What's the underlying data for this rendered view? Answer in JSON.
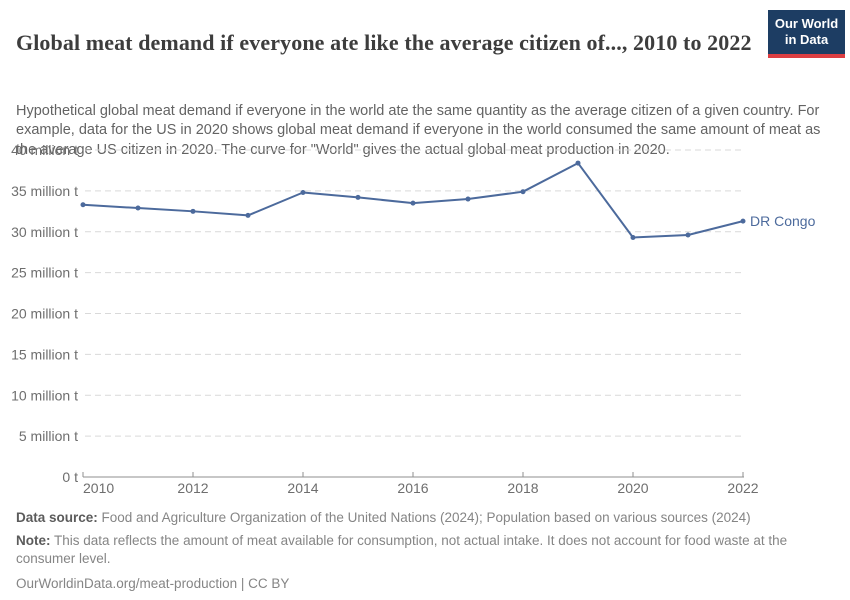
{
  "header": {
    "title": "Global meat demand if everyone ate like the average citizen of..., 2010 to 2022",
    "subtitle": "Hypothetical global meat demand if everyone in the world ate the same quantity as the average citizen of a given country. For example, data for the US in 2020 shows global meat demand if everyone in the world consumed the same amount of meat as the average US citizen in 2020. The curve for \"World\" gives the actual global meat production in 2020.",
    "logo": {
      "line1": "Our World",
      "line2": "in Data"
    }
  },
  "chart_data": {
    "type": "line",
    "title": "Global meat demand if everyone ate like the average citizen of..., 2010 to 2022",
    "x": [
      2010,
      2011,
      2012,
      2013,
      2014,
      2015,
      2016,
      2017,
      2018,
      2019,
      2020,
      2021,
      2022
    ],
    "series": [
      {
        "name": "DR Congo",
        "values": [
          33.3,
          32.9,
          32.5,
          32.0,
          34.8,
          34.2,
          33.5,
          34.0,
          34.9,
          38.4,
          29.3,
          29.6,
          31.3
        ]
      }
    ],
    "ylim": [
      0,
      40
    ],
    "ytick_step": 5,
    "ytick_labels": [
      "0 t",
      "5 million t",
      "10 million t",
      "15 million t",
      "20 million t",
      "25 million t",
      "30 million t",
      "35 million t",
      "40 million t"
    ],
    "xtick_labels": [
      "2010",
      "2012",
      "2014",
      "2016",
      "2018",
      "2020",
      "2022"
    ],
    "xlabel": "",
    "ylabel": "",
    "grid": "horizontal-dashed",
    "legend": "end-of-line-label",
    "end_label": "DR Congo"
  },
  "footer": {
    "data_source_label": "Data source:",
    "data_source": " Food and Agriculture Organization of the United Nations (2024); Population based on various sources (2024)",
    "note_label": "Note:",
    "note": " This data reflects the amount of meat available for consumption, not actual intake. It does not account for food waste at the consumer level.",
    "link": "OurWorldinData.org/meat-production | CC BY"
  },
  "colors": {
    "line": "#4C6A9C",
    "grid": "#d9d9d9",
    "axis": "#8f8f8f",
    "tick_text": "#6e6e6e",
    "title_text": "#3d3d3d",
    "subtitle_text": "#636363",
    "footer_text": "#858585",
    "footer_label_text": "#5b5b5b",
    "logo_bg": "#1d3d63",
    "logo_accent": "#dc3e42"
  }
}
